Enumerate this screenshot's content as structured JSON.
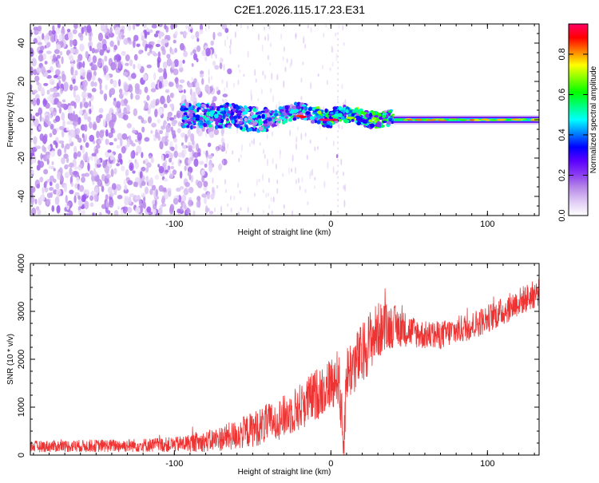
{
  "title": "C2E1.2026.115.17.23.E31",
  "chart_data": [
    {
      "type": "heatmap",
      "xlabel": "Height of straight line (km)",
      "ylabel": "Frequency (Hz)",
      "xlim": [
        -192,
        133
      ],
      "ylim": [
        -50,
        50
      ],
      "x_ticks": [
        -100,
        0,
        100
      ],
      "y_ticks": [
        -40,
        -20,
        0,
        20,
        40
      ],
      "colorbar": {
        "label": "Normalized spectral amplitude",
        "range": [
          0,
          0.95
        ],
        "ticks": [
          0.0,
          0.2,
          0.4,
          0.6,
          0.8
        ],
        "tick_labels": [
          "0.0",
          "0.2",
          "0.4",
          "0.6",
          "0.8"
        ],
        "colormap": [
          "#ffffff",
          "#e0ccf5",
          "#b98ce8",
          "#8a3cf0",
          "#5a00ff",
          "#0000ff",
          "#0080ff",
          "#00ffff",
          "#00ff80",
          "#00ff00",
          "#80ff00",
          "#ffff00",
          "#ff8000",
          "#ff0000",
          "#ff0066"
        ]
      },
      "regions": [
        {
          "x_range": [
            -192,
            -95
          ],
          "description_value": 0.12,
          "freq_spread": [
            -50,
            50
          ]
        },
        {
          "x_range": [
            -95,
            -40
          ],
          "description_value": 0.2,
          "freq_spread": [
            -10,
            10
          ]
        },
        {
          "x_range": [
            -40,
            40
          ],
          "description_value": 0.45,
          "freq_spread": [
            -5,
            6
          ]
        },
        {
          "x_range": [
            40,
            133
          ],
          "description_value": 0.5,
          "freq_spread": [
            -2,
            2
          ]
        }
      ]
    },
    {
      "type": "line",
      "xlabel": "Height of straight line (km)",
      "ylabel": "SNR (10 * v/v)",
      "xlim": [
        -192,
        133
      ],
      "ylim": [
        0,
        4000
      ],
      "x_ticks": [
        -100,
        0,
        100
      ],
      "y_ticks": [
        0,
        1000,
        2000,
        3000,
        4000
      ],
      "color": "#ee3333",
      "series": [
        {
          "x": [
            -192,
            -160,
            -130,
            -100,
            -80,
            -60,
            -45,
            -30,
            -20,
            -10,
            0,
            5,
            8,
            10,
            15,
            20,
            25,
            30,
            40,
            50,
            60,
            70,
            80,
            90,
            100,
            110,
            120,
            133
          ],
          "y": [
            180,
            190,
            200,
            220,
            280,
            420,
            600,
            800,
            1000,
            1250,
            1500,
            1650,
            200,
            1700,
            1900,
            2100,
            2400,
            2600,
            2700,
            2600,
            2500,
            2500,
            2600,
            2700,
            2850,
            3000,
            3200,
            3400
          ],
          "amplitude": [
            120,
            130,
            140,
            160,
            220,
            320,
            400,
            450,
            500,
            550,
            550,
            600,
            600,
            600,
            650,
            650,
            650,
            600,
            450,
            350,
            300,
            300,
            300,
            300,
            300,
            300,
            300,
            300
          ]
        }
      ]
    }
  ]
}
